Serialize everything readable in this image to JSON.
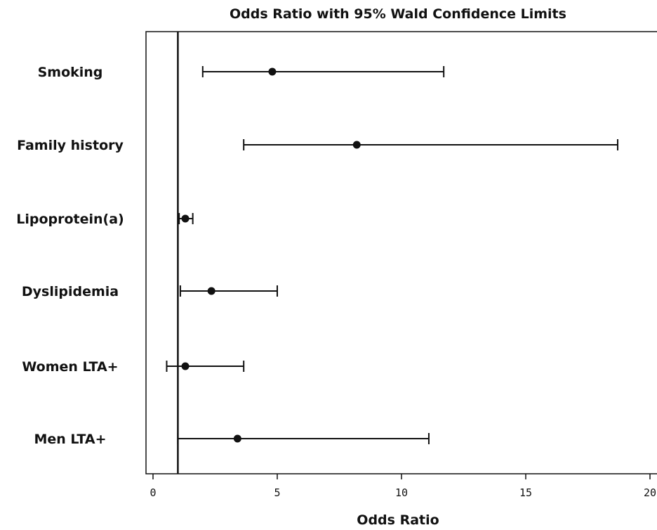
{
  "chart_data": {
    "type": "forest",
    "title": "Odds Ratio with 95% Wald Confidence Limits",
    "xlabel": "Odds Ratio",
    "ylabel": "",
    "xlim": [
      -0.3,
      20.3
    ],
    "xticks": [
      0,
      5,
      10,
      15,
      20
    ],
    "xtick_labels": [
      "0",
      "5",
      "10",
      "15",
      "20"
    ],
    "reference_line": 1,
    "categories": [
      "Smoking",
      "Family history",
      "Lipoprotein(a)",
      "Dyslipidemia",
      "Women LTA+",
      "Men LTA+"
    ],
    "series": [
      {
        "points": [
          {
            "label": "Smoking",
            "or": 4.8,
            "lower": 2.0,
            "upper": 11.7
          },
          {
            "label": "Family history",
            "or": 8.2,
            "lower": 3.65,
            "upper": 18.7
          },
          {
            "label": "Lipoprotein(a)",
            "or": 1.3,
            "lower": 1.05,
            "upper": 1.6
          },
          {
            "label": "Dyslipidemia",
            "or": 2.35,
            "lower": 1.1,
            "upper": 5.0
          },
          {
            "label": "Women LTA+",
            "or": 1.3,
            "lower": 0.55,
            "upper": 3.65
          },
          {
            "label": "Men LTA+",
            "or": 3.4,
            "lower": 1.0,
            "upper": 11.1
          }
        ]
      }
    ],
    "grid": false,
    "legend": "none"
  }
}
